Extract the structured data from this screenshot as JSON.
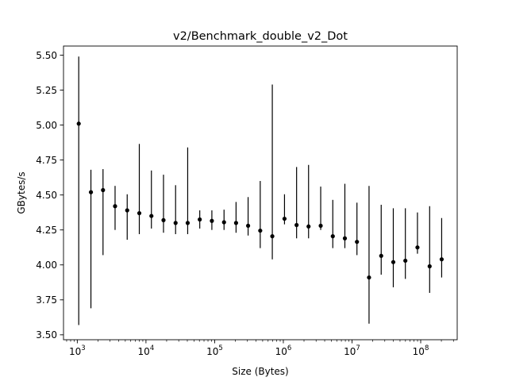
{
  "chart_data": {
    "type": "scatter",
    "title": "v2/Benchmark_double_v2_Dot",
    "xlabel": "Size (Bytes)",
    "ylabel": "GBytes/s",
    "xscale": "log",
    "xlim": [
      630,
      340000000
    ],
    "ylim": [
      3.465,
      5.565
    ],
    "x_ticks": [
      {
        "value": 1000,
        "base": "10",
        "exp": "3"
      },
      {
        "value": 10000,
        "base": "10",
        "exp": "4"
      },
      {
        "value": 100000,
        "base": "10",
        "exp": "5"
      },
      {
        "value": 1000000,
        "base": "10",
        "exp": "6"
      },
      {
        "value": 10000000,
        "base": "10",
        "exp": "7"
      },
      {
        "value": 100000000,
        "base": "10",
        "exp": "8"
      }
    ],
    "y_ticks": [
      {
        "value": 3.5,
        "label": "3.50"
      },
      {
        "value": 3.75,
        "label": "3.75"
      },
      {
        "value": 4.0,
        "label": "4.00"
      },
      {
        "value": 4.25,
        "label": "4.25"
      },
      {
        "value": 4.5,
        "label": "4.50"
      },
      {
        "value": 4.75,
        "label": "4.75"
      },
      {
        "value": 5.0,
        "label": "5.00"
      },
      {
        "value": 5.25,
        "label": "5.25"
      },
      {
        "value": 5.5,
        "label": "5.50"
      }
    ],
    "grid": false,
    "legend": "none",
    "marker_color": "#000000",
    "series": [
      {
        "points": [
          {
            "x": 1050,
            "y": 5.01,
            "ymin": 3.57,
            "ymax": 5.49
          },
          {
            "x": 1580,
            "y": 4.52,
            "ymin": 3.69,
            "ymax": 4.68
          },
          {
            "x": 2370,
            "y": 4.535,
            "ymin": 4.07,
            "ymax": 4.685
          },
          {
            "x": 3550,
            "y": 4.42,
            "ymin": 4.25,
            "ymax": 4.565
          },
          {
            "x": 5330,
            "y": 4.39,
            "ymin": 4.18,
            "ymax": 4.505
          },
          {
            "x": 8000,
            "y": 4.37,
            "ymin": 4.22,
            "ymax": 4.865
          },
          {
            "x": 12000,
            "y": 4.35,
            "ymin": 4.26,
            "ymax": 4.675
          },
          {
            "x": 18000,
            "y": 4.32,
            "ymin": 4.23,
            "ymax": 4.645
          },
          {
            "x": 27000,
            "y": 4.3,
            "ymin": 4.22,
            "ymax": 4.57
          },
          {
            "x": 40500,
            "y": 4.3,
            "ymin": 4.22,
            "ymax": 4.84
          },
          {
            "x": 60700,
            "y": 4.325,
            "ymin": 4.26,
            "ymax": 4.39
          },
          {
            "x": 91100,
            "y": 4.315,
            "ymin": 4.25,
            "ymax": 4.39
          },
          {
            "x": 137000,
            "y": 4.305,
            "ymin": 4.25,
            "ymax": 4.395
          },
          {
            "x": 205000,
            "y": 4.3,
            "ymin": 4.23,
            "ymax": 4.45
          },
          {
            "x": 307000,
            "y": 4.28,
            "ymin": 4.21,
            "ymax": 4.485
          },
          {
            "x": 461000,
            "y": 4.245,
            "ymin": 4.12,
            "ymax": 4.6
          },
          {
            "x": 691000,
            "y": 4.205,
            "ymin": 4.04,
            "ymax": 5.29
          },
          {
            "x": 1040000,
            "y": 4.33,
            "ymin": 4.29,
            "ymax": 4.505
          },
          {
            "x": 1560000,
            "y": 4.285,
            "ymin": 4.19,
            "ymax": 4.7
          },
          {
            "x": 2330000,
            "y": 4.275,
            "ymin": 4.19,
            "ymax": 4.715
          },
          {
            "x": 3500000,
            "y": 4.28,
            "ymin": 4.25,
            "ymax": 4.56
          },
          {
            "x": 5250000,
            "y": 4.205,
            "ymin": 4.12,
            "ymax": 4.465
          },
          {
            "x": 7870000,
            "y": 4.19,
            "ymin": 4.12,
            "ymax": 4.58
          },
          {
            "x": 11800000,
            "y": 4.165,
            "ymin": 4.07,
            "ymax": 4.445
          },
          {
            "x": 17700000,
            "y": 3.91,
            "ymin": 3.58,
            "ymax": 4.565
          },
          {
            "x": 26600000,
            "y": 4.065,
            "ymin": 3.93,
            "ymax": 4.43
          },
          {
            "x": 39900000,
            "y": 4.02,
            "ymin": 3.84,
            "ymax": 4.405
          },
          {
            "x": 59800000,
            "y": 4.03,
            "ymin": 3.9,
            "ymax": 4.405
          },
          {
            "x": 89700000,
            "y": 4.125,
            "ymin": 4.08,
            "ymax": 4.375
          },
          {
            "x": 135000000,
            "y": 3.99,
            "ymin": 3.8,
            "ymax": 4.42
          },
          {
            "x": 202000000,
            "y": 4.04,
            "ymin": 3.91,
            "ymax": 4.335
          }
        ]
      }
    ]
  }
}
